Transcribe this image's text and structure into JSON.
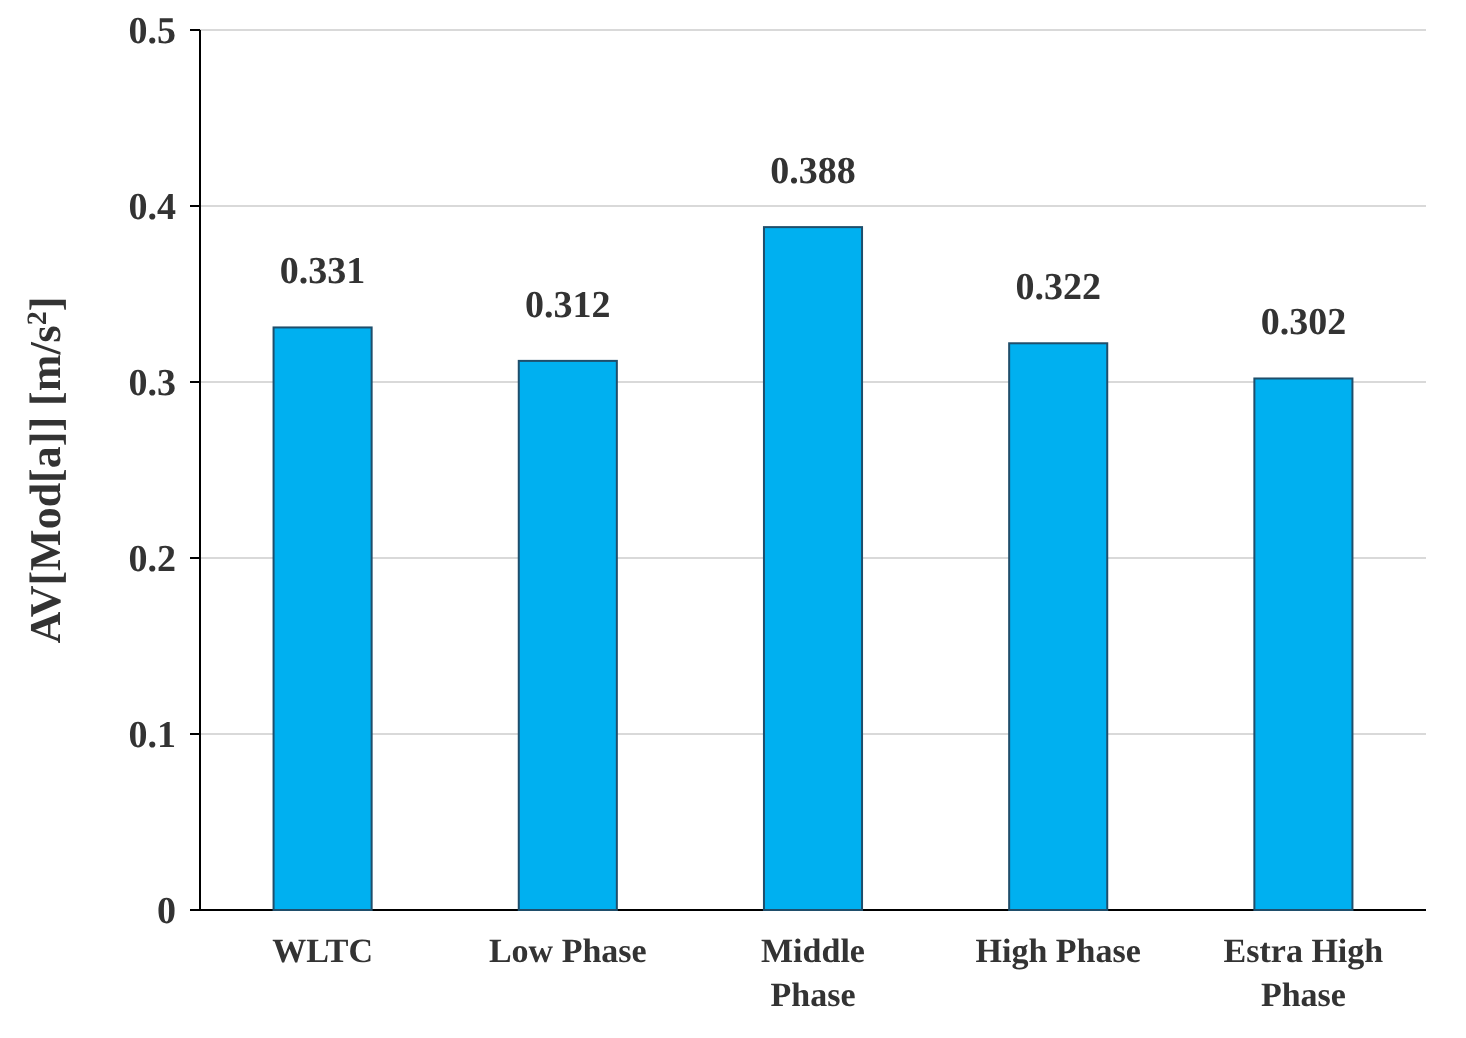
{
  "chart_data": {
    "type": "bar",
    "ylabel": "AV[Mod[a]] [m/s$^{2}$]",
    "categories": [
      "WLTC",
      "Low Phase",
      "Middle Phase",
      "High Phase",
      "Estra High Phase"
    ],
    "values": [
      0.331,
      0.312,
      0.388,
      0.322,
      0.302
    ],
    "color": "#00b0f0",
    "ylim": [
      0,
      0.5
    ],
    "yticks": [
      {
        "value": 0,
        "label": "0"
      },
      0.1,
      0.2,
      0.3,
      0.4,
      0.5
    ],
    "grid": "y",
    "data_labels": true
  }
}
